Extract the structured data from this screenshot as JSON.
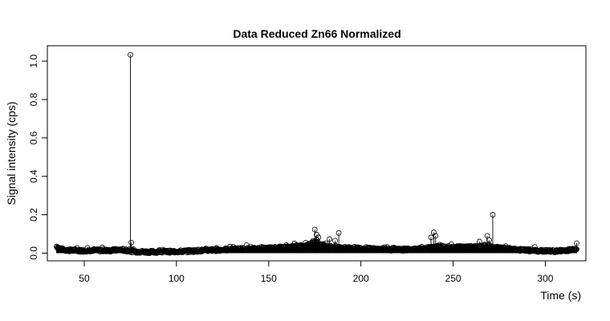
{
  "chart_data": {
    "type": "scatter",
    "title": "Data Reduced Zn66 Normalized",
    "xlabel": "Time (s)",
    "ylabel": "Signal intensity (cps)",
    "xlim": [
      30,
      322
    ],
    "ylim": [
      -0.04,
      1.08
    ],
    "xticks": [
      50,
      100,
      150,
      200,
      250,
      300
    ],
    "yticks": [
      0.0,
      0.2,
      0.4,
      0.6,
      0.8,
      1.0
    ],
    "ytick_labels": [
      "0.0",
      "0.2",
      "0.4",
      "0.6",
      "0.8",
      "1.0"
    ],
    "x_range": [
      35,
      317
    ],
    "grid": false,
    "marker": "open-circle",
    "connector": "vertical line from each point to 0",
    "color": "#000000",
    "series": [
      {
        "x_start": 35,
        "x_end": 317,
        "baseline": [
          [
            35,
            0.035
          ],
          [
            37,
            0.022
          ],
          [
            40,
            0.016
          ],
          [
            45,
            0.014
          ],
          [
            50,
            0.013
          ],
          [
            55,
            0.016
          ],
          [
            60,
            0.013
          ],
          [
            65,
            0.015
          ],
          [
            70,
            0.018
          ],
          [
            74,
            0.012
          ],
          [
            78,
            0.008
          ],
          [
            85,
            0.006
          ],
          [
            90,
            0.007
          ],
          [
            100,
            0.008
          ],
          [
            110,
            0.012
          ],
          [
            120,
            0.016
          ],
          [
            130,
            0.02
          ],
          [
            140,
            0.022
          ],
          [
            150,
            0.025
          ],
          [
            160,
            0.03
          ],
          [
            168,
            0.038
          ],
          [
            172,
            0.045
          ],
          [
            175,
            0.055
          ],
          [
            178,
            0.045
          ],
          [
            182,
            0.035
          ],
          [
            190,
            0.028
          ],
          [
            200,
            0.025
          ],
          [
            210,
            0.02
          ],
          [
            220,
            0.018
          ],
          [
            230,
            0.02
          ],
          [
            236,
            0.025
          ],
          [
            240,
            0.035
          ],
          [
            245,
            0.03
          ],
          [
            250,
            0.03
          ],
          [
            260,
            0.032
          ],
          [
            266,
            0.035
          ],
          [
            270,
            0.033
          ],
          [
            275,
            0.026
          ],
          [
            285,
            0.018
          ],
          [
            295,
            0.012
          ],
          [
            305,
            0.01
          ],
          [
            312,
            0.015
          ],
          [
            317,
            0.025
          ]
        ],
        "spikes": [
          [
            75,
            1.033
          ],
          [
            75.5,
            0.055
          ],
          [
            175,
            0.123
          ],
          [
            176,
            0.096
          ],
          [
            177,
            0.082
          ],
          [
            183,
            0.073
          ],
          [
            186,
            0.065
          ],
          [
            188,
            0.105
          ],
          [
            238,
            0.082
          ],
          [
            239.5,
            0.108
          ],
          [
            240.5,
            0.09
          ],
          [
            268.5,
            0.09
          ],
          [
            269.5,
            0.068
          ],
          [
            271.5,
            0.2
          ],
          [
            317,
            0.052
          ]
        ]
      }
    ]
  }
}
